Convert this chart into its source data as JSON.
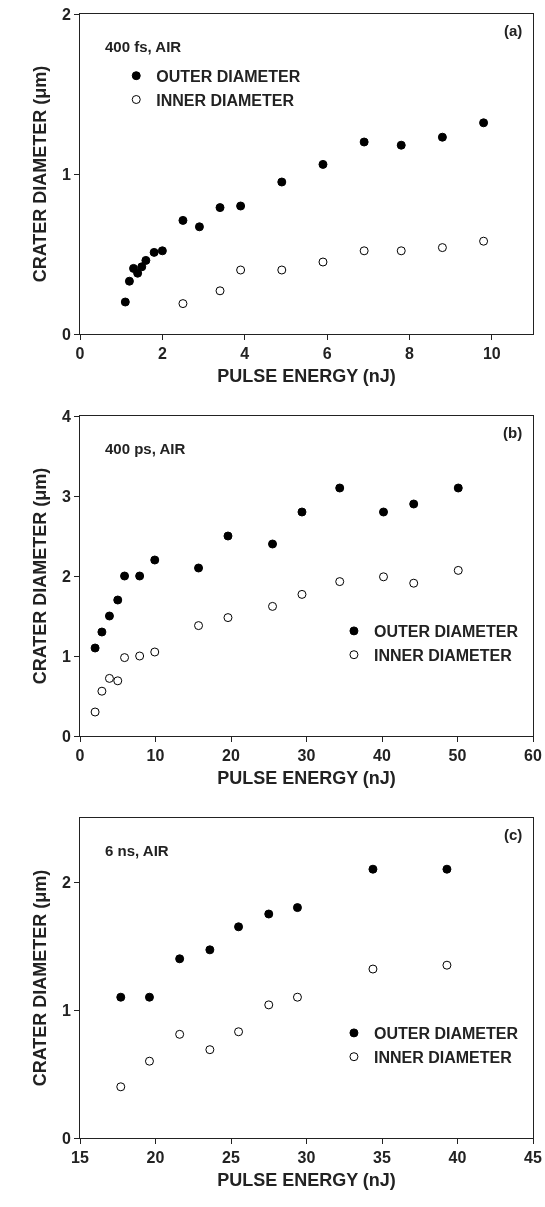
{
  "chart_data": [
    {
      "type": "scatter",
      "xlabel": "PULSE ENERGY (nJ)",
      "ylabel": "CRATER DIAMETER (μm)",
      "annotations": [
        "400 fs, AIR",
        "(a)"
      ],
      "xlim": [
        0,
        11
      ],
      "xticks": [
        0,
        2,
        4,
        6,
        8,
        10
      ],
      "ylim": [
        0,
        2
      ],
      "yticks": [
        0,
        1,
        2
      ],
      "grid": false,
      "legend": "top left",
      "marker": "circle",
      "series": [
        {
          "name": "OUTER DIAMETER",
          "color": "#000000",
          "x": [
            1.1,
            1.2,
            1.3,
            1.4,
            1.5,
            1.6,
            1.8,
            2.0,
            2.5,
            2.9,
            3.4,
            3.9,
            4.9,
            5.9,
            6.9,
            7.8,
            8.8,
            9.8
          ],
          "values": [
            0.2,
            0.33,
            0.41,
            0.38,
            0.42,
            0.46,
            0.51,
            0.52,
            0.71,
            0.67,
            0.79,
            0.8,
            0.95,
            1.06,
            1.2,
            1.18,
            1.23,
            1.32
          ]
        },
        {
          "name": "INNER DIAMETER",
          "color": "#ffffff",
          "x": [
            2.5,
            3.4,
            3.9,
            4.9,
            5.9,
            6.9,
            7.8,
            8.8,
            9.8
          ],
          "values": [
            0.19,
            0.27,
            0.4,
            0.4,
            0.45,
            0.52,
            0.52,
            0.54,
            0.58
          ]
        }
      ]
    },
    {
      "type": "scatter",
      "xlabel": "PULSE ENERGY (nJ)",
      "ylabel": "CRATER DIAMETER (μm)",
      "annotations": [
        "400 ps, AIR",
        "(b)"
      ],
      "xlim": [
        0,
        60
      ],
      "xticks": [
        0,
        10,
        20,
        30,
        40,
        50,
        60
      ],
      "ylim": [
        0,
        4
      ],
      "yticks": [
        0,
        1,
        2,
        3,
        4
      ],
      "grid": false,
      "legend": "bottom right",
      "marker": "circle",
      "series": [
        {
          "name": "OUTER DIAMETER",
          "color": "#000000",
          "x": [
            2,
            2.9,
            3.9,
            5,
            5.9,
            7.9,
            9.9,
            15.7,
            19.6,
            25.5,
            29.4,
            34.4,
            40.2,
            44.2,
            50.1
          ],
          "values": [
            1.1,
            1.3,
            1.5,
            1.7,
            2.0,
            2.0,
            2.2,
            2.1,
            2.5,
            2.4,
            2.8,
            3.1,
            2.8,
            2.9,
            3.1
          ]
        },
        {
          "name": "INNER DIAMETER",
          "color": "#ffffff",
          "x": [
            2,
            2.9,
            3.9,
            5,
            5.9,
            7.9,
            9.9,
            15.7,
            19.6,
            25.5,
            29.4,
            34.4,
            40.2,
            44.2,
            50.1
          ],
          "values": [
            0.3,
            0.56,
            0.72,
            0.69,
            0.98,
            1.0,
            1.05,
            1.38,
            1.48,
            1.62,
            1.77,
            1.93,
            1.99,
            1.91,
            2.07
          ]
        }
      ]
    },
    {
      "type": "scatter",
      "xlabel": "PULSE ENERGY (nJ)",
      "ylabel": "CRATER DIAMETER (μm)",
      "annotations": [
        "6 ns, AIR",
        "(c)"
      ],
      "xlim": [
        15,
        45
      ],
      "xticks": [
        15,
        20,
        25,
        30,
        35,
        40,
        45
      ],
      "ylim": [
        0,
        2.5
      ],
      "yticks": [
        0,
        1,
        2
      ],
      "grid": false,
      "legend": "bottom right",
      "marker": "circle",
      "series": [
        {
          "name": "OUTER DIAMETER",
          "color": "#000000",
          "x": [
            17.7,
            19.6,
            21.6,
            23.6,
            25.5,
            27.5,
            29.4,
            34.4,
            39.3
          ],
          "values": [
            1.1,
            1.1,
            1.4,
            1.47,
            1.65,
            1.75,
            1.8,
            2.1,
            2.1
          ]
        },
        {
          "name": "INNER DIAMETER",
          "color": "#ffffff",
          "x": [
            17.7,
            19.6,
            21.6,
            23.6,
            25.5,
            27.5,
            29.4,
            34.4,
            39.3
          ],
          "values": [
            0.4,
            0.6,
            0.81,
            0.69,
            0.83,
            1.04,
            1.1,
            1.32,
            1.35
          ]
        }
      ]
    }
  ]
}
